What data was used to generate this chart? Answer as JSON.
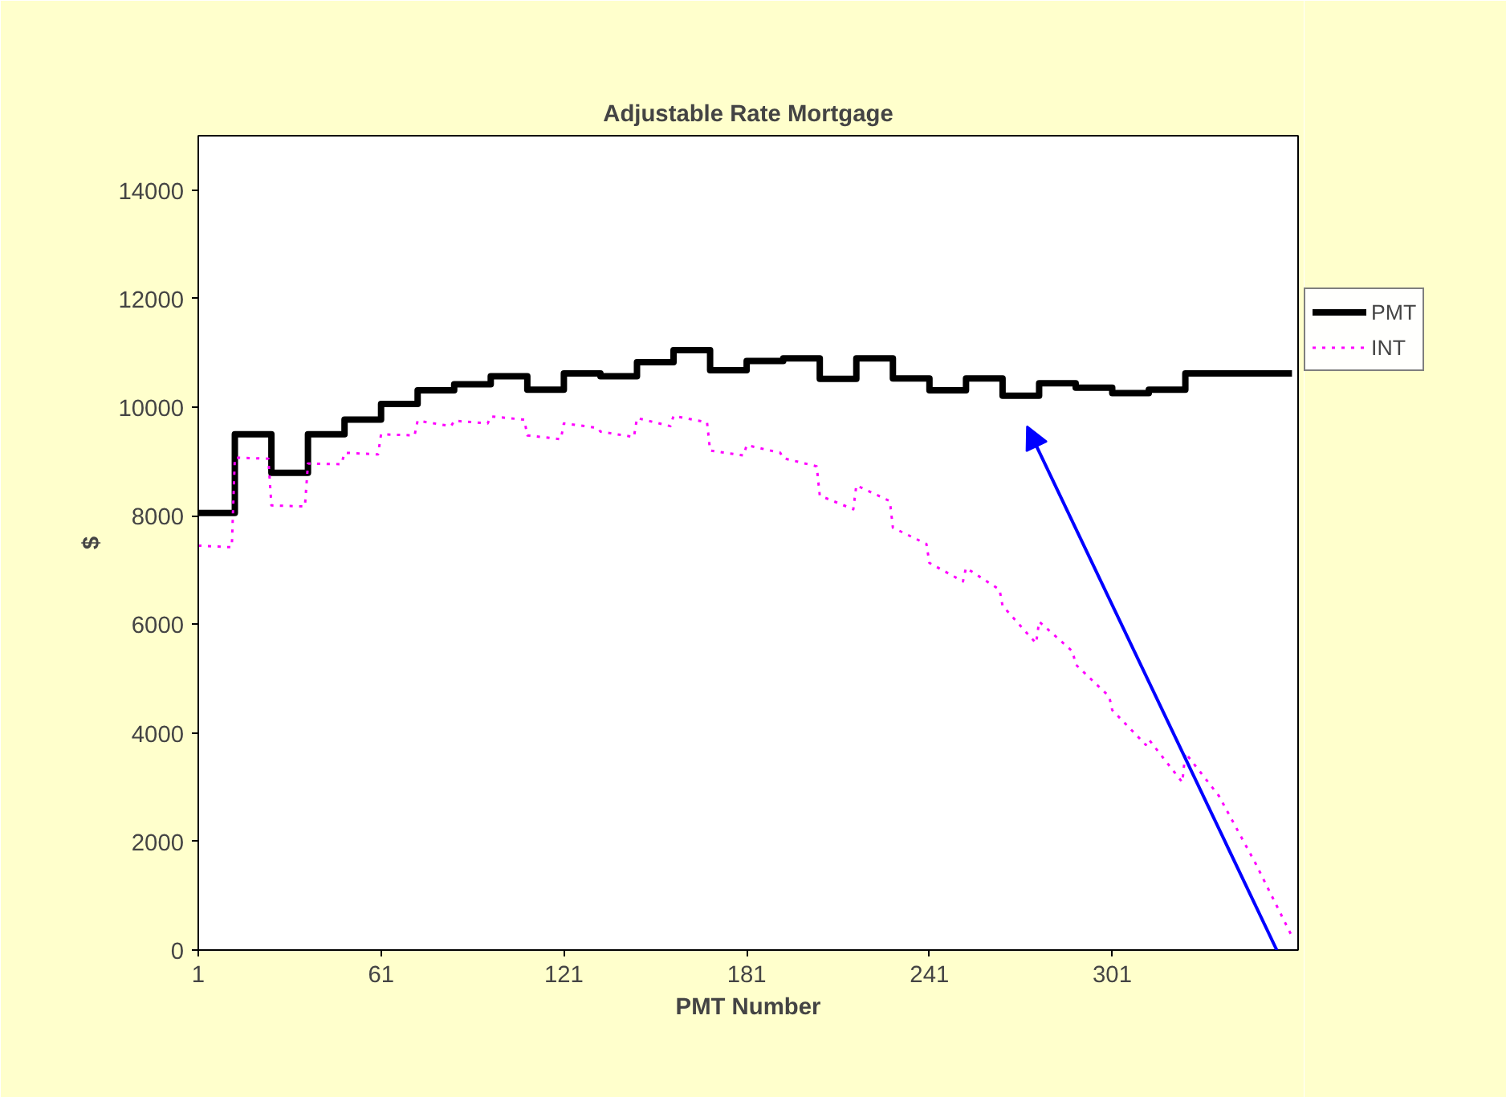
{
  "chart_data": {
    "type": "line",
    "title": "Adjustable Rate Mortgage",
    "xlabel": "PMT Number",
    "ylabel": "$",
    "xlim": [
      1,
      362
    ],
    "xticks": [
      1,
      61,
      121,
      181,
      241,
      301
    ],
    "ylim": [
      0,
      15000
    ],
    "yticks": [
      0,
      2000,
      4000,
      6000,
      8000,
      10000,
      12000,
      14000
    ],
    "grid": false,
    "legend": "right",
    "series": [
      {
        "name": "PMT",
        "type": "step",
        "color": "#000000",
        "line_style": "solid",
        "x": [
          1,
          13,
          25,
          37,
          49,
          61,
          73,
          85,
          97,
          109,
          121,
          133,
          145,
          157,
          169,
          181,
          193,
          205,
          217,
          229,
          241,
          253,
          265,
          277,
          289,
          301,
          313,
          325,
          360
        ],
        "values": [
          8050,
          9500,
          8790,
          9500,
          9770,
          10060,
          10310,
          10420,
          10570,
          10320,
          10620,
          10570,
          10830,
          11050,
          10680,
          10850,
          10900,
          10520,
          10900,
          10530,
          10310,
          10530,
          10210,
          10440,
          10360,
          10260,
          10320,
          10620,
          10620
        ]
      },
      {
        "name": "INT",
        "color": "#ff00ff",
        "line_style": "dotted",
        "x": [
          1,
          12,
          13,
          24,
          25,
          36,
          37,
          48,
          49,
          60,
          61,
          72,
          73,
          84,
          85,
          96,
          97,
          108,
          109,
          120,
          121,
          132,
          133,
          144,
          145,
          156,
          157,
          168,
          169,
          180,
          181,
          192,
          193,
          204,
          205,
          216,
          217,
          228,
          229,
          240,
          241,
          252,
          253,
          264,
          265,
          276,
          277,
          288,
          289,
          300,
          301,
          312,
          313,
          324,
          325,
          336,
          348,
          360
        ],
        "values": [
          7450,
          7420,
          9070,
          9050,
          8190,
          8170,
          8960,
          8950,
          9160,
          9130,
          9500,
          9480,
          9750,
          9650,
          9750,
          9700,
          9830,
          9770,
          9480,
          9410,
          9700,
          9620,
          9550,
          9450,
          9800,
          9650,
          9840,
          9720,
          9200,
          9110,
          9300,
          9160,
          9060,
          8910,
          8370,
          8120,
          8560,
          8270,
          7780,
          7480,
          7130,
          6790,
          7040,
          6640,
          6340,
          5650,
          6050,
          5500,
          5260,
          4670,
          4420,
          3780,
          3880,
          3090,
          3630,
          2840,
          1600,
          250
        ]
      }
    ]
  }
}
